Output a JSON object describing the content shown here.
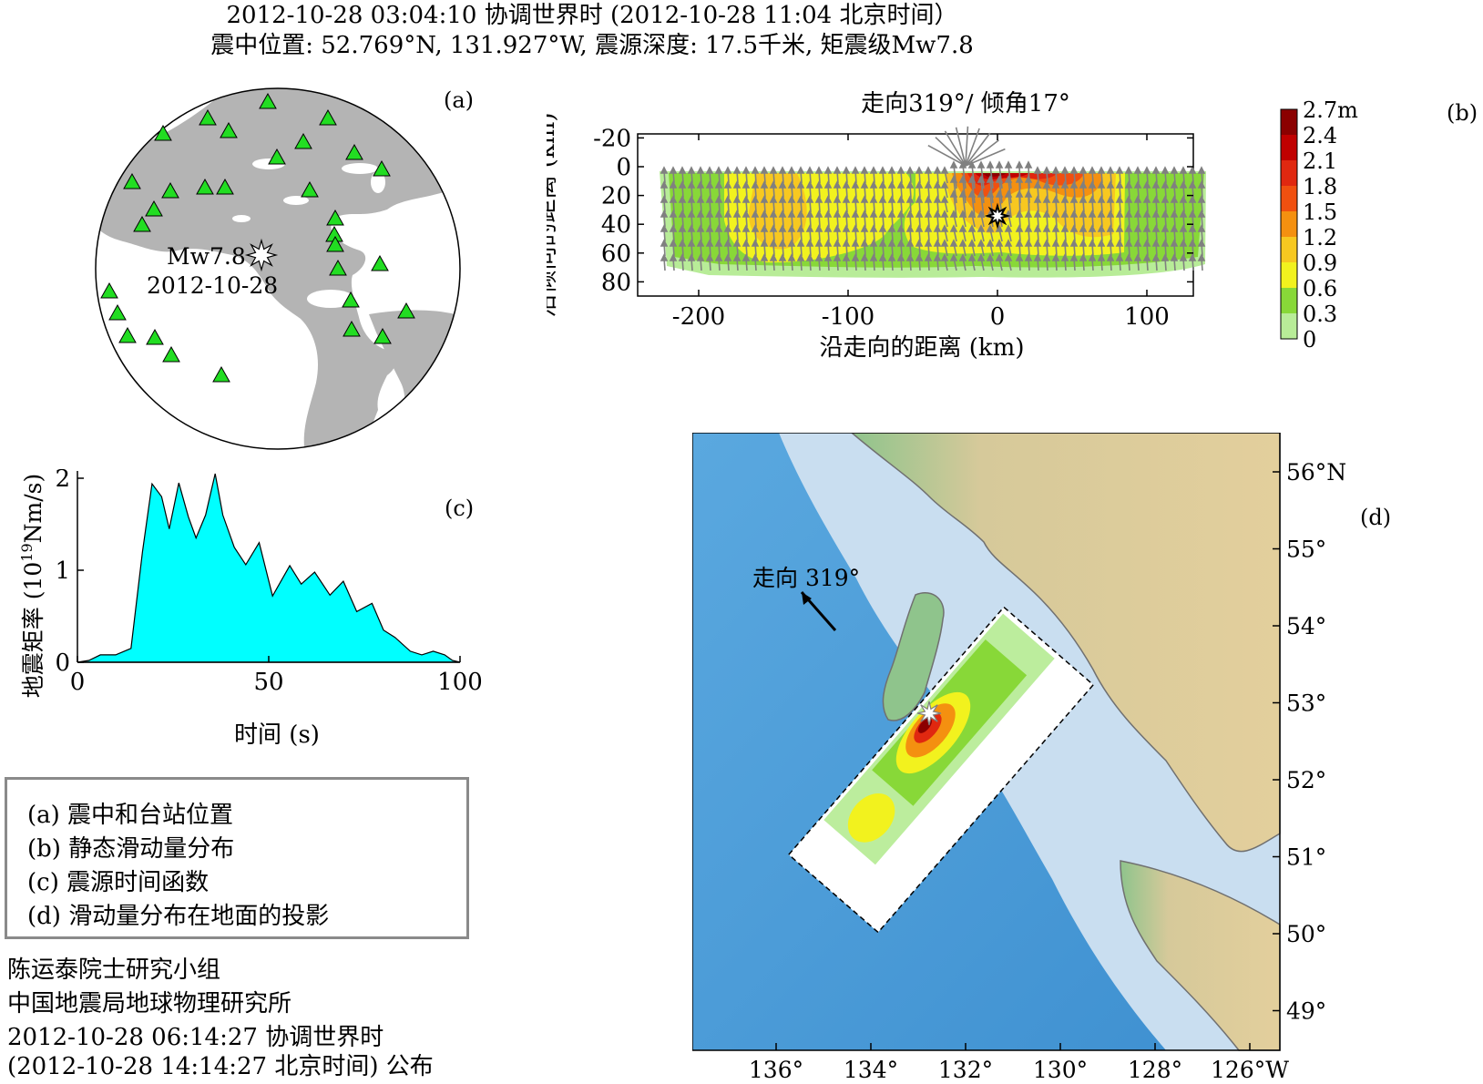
{
  "header": {
    "line1": "2012-10-28 03:04:10 协调世界时  (2012-10-28 11:04 北京时间）",
    "line2": "震中位置: 52.769°N, 131.927°W,  震源深度: 17.5千米,  矩震级Mw7.8"
  },
  "panel_a": {
    "label": "(a)",
    "event_mag": "Mw7.8",
    "event_date": "2012-10-28"
  },
  "panel_b": {
    "label": "(b)",
    "title": "走向319°/ 倾角17°",
    "xlabel": "沿走向的距离 (km)",
    "ylabel": "沿倾向的距离 (km)",
    "x_ticks": [
      "-200",
      "-100",
      "0",
      "100"
    ],
    "y_ticks": [
      "-20",
      "0",
      "20",
      "40",
      "60",
      "80"
    ],
    "colorbar_labels": [
      "2.7m",
      "2.4",
      "2.1",
      "1.8",
      "1.5",
      "1.2",
      "0.9",
      "0.6",
      "0.3",
      "0"
    ],
    "colors": [
      "#8b0000",
      "#c00000",
      "#e02810",
      "#f05010",
      "#f49010",
      "#f7c820",
      "#f2f21e",
      "#88d838",
      "#b8ec98",
      "#ffffff"
    ]
  },
  "panel_c": {
    "label": "(c)",
    "xlabel": "时间 (s)",
    "ylabel_prefix": "地震矩率 (10",
    "ylabel_exp": "19",
    "ylabel_suffix": "Nm/s)",
    "x_ticks": [
      "0",
      "50",
      "100"
    ],
    "y_ticks": [
      "0",
      "1",
      "2"
    ],
    "fill_color": "#00ffff"
  },
  "panel_d": {
    "label": "(d)",
    "strike_label": "走向 319°",
    "lat_ticks": [
      "56°N",
      "55°",
      "54°",
      "53°",
      "52°",
      "51°",
      "50°",
      "49°"
    ],
    "lon_ticks": [
      "136°",
      "134°",
      "132°",
      "130°",
      "128°",
      "126°W"
    ]
  },
  "legend": {
    "items": [
      "(a) 震中和台站位置",
      "(b) 静态滑动量分布",
      "(c) 震源时间函数",
      "(d) 滑动量分布在地面的投影"
    ]
  },
  "credits": {
    "line1": "陈运泰院士研究小组",
    "line2": "中国地震局地球物理研究所",
    "line3": "2012-10-28 06:14:27 协调世界时",
    "line4": "(2012-10-28 14:14:27 北京时间)  公布"
  },
  "chart_data": {
    "type": "area",
    "x": [
      0,
      3,
      6,
      10,
      14,
      17,
      19.5,
      22,
      24,
      26.5,
      29,
      31,
      33.5,
      36,
      38,
      41,
      44,
      47.5,
      51,
      55.5,
      58.5,
      62,
      66,
      69.5,
      73,
      77,
      80,
      83,
      87,
      90,
      93,
      96,
      98,
      100
    ],
    "y": [
      0,
      0.02,
      0.08,
      0.08,
      0.15,
      1.2,
      1.94,
      1.8,
      1.45,
      1.95,
      1.58,
      1.35,
      1.6,
      2.05,
      1.6,
      1.25,
      1.06,
      1.3,
      0.72,
      1.05,
      0.85,
      0.98,
      0.73,
      0.88,
      0.55,
      0.64,
      0.35,
      0.27,
      0.12,
      0.08,
      0.12,
      0.08,
      0.02,
      0
    ],
    "xlim": [
      0,
      100
    ],
    "ylim": [
      0,
      2.1
    ],
    "xlabel": "时间 (s)"
  }
}
